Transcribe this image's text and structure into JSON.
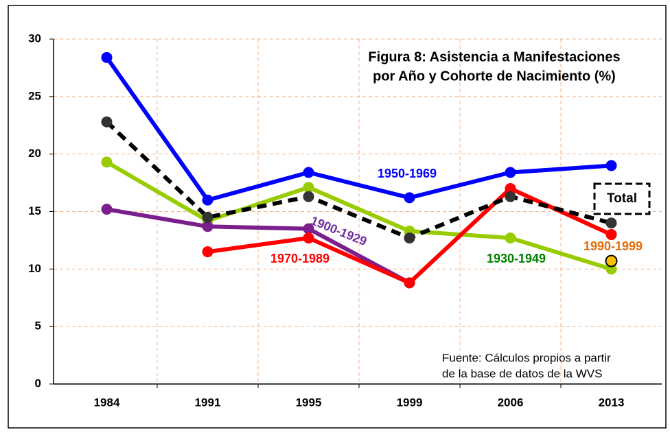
{
  "chart_data": {
    "type": "line",
    "title": [
      "Figura 8: Asistencia a Manifestaciones",
      "por Año y Cohorte de Nacimiento (%)"
    ],
    "note": [
      "Fuente: Cálculos propios a partir",
      "de la base de datos de la WVS"
    ],
    "categories": [
      "1984",
      "1991",
      "1995",
      "1999",
      "2006",
      "2013"
    ],
    "ylim": [
      0,
      30
    ],
    "yticks": [
      0,
      5,
      10,
      15,
      20,
      25,
      30
    ],
    "grid": true,
    "series": [
      {
        "name": "1930-1949",
        "color": "#99cc00",
        "label_color": "#008000",
        "values": [
          19.3,
          14.2,
          17.1,
          13.3,
          12.7,
          10.0
        ]
      },
      {
        "name": "1900-1929",
        "color": "#7a1f8c",
        "label_color": "#7030a0",
        "values": [
          15.2,
          13.7,
          13.5,
          8.8,
          null,
          null
        ]
      },
      {
        "name": "1970-1989",
        "color": "#ff0000",
        "label_color": "#ff0000",
        "values": [
          null,
          11.5,
          12.7,
          8.8,
          17.0,
          13.0
        ]
      },
      {
        "name": "Total",
        "color": "#000000",
        "label_color": "#000000",
        "dashed": true,
        "values": [
          22.8,
          14.5,
          16.3,
          12.7,
          16.3,
          14.0
        ]
      },
      {
        "name": "1950-1969",
        "color": "#0000ff",
        "label_color": "#0000ff",
        "values": [
          28.4,
          16.0,
          18.4,
          16.2,
          18.4,
          19.0
        ]
      },
      {
        "name": "1990-1999",
        "color": "#ffc000",
        "label_color": "#e36c09",
        "values": [
          null,
          null,
          null,
          null,
          null,
          10.7
        ]
      }
    ]
  }
}
